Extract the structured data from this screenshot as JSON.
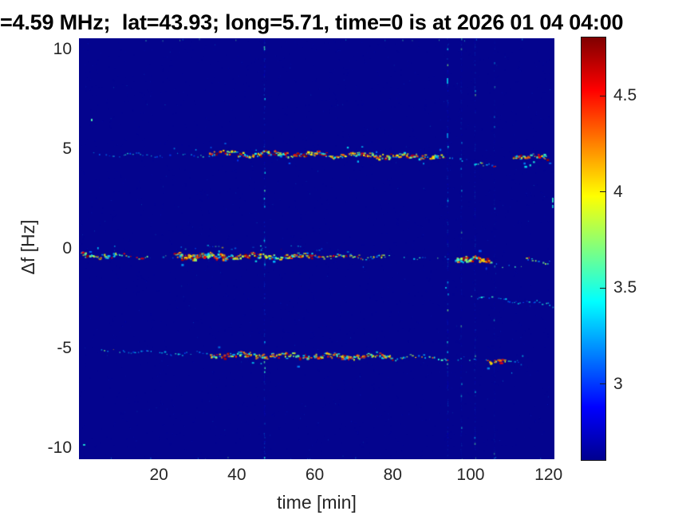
{
  "chart_data": {
    "type": "heatmap",
    "title": "=4.59 MHz;  lat=43.93; long=5.71, time=0 is at 2026 01 04 04:00",
    "xlabel": "time [min]",
    "ylabel": "Δf [Hz]",
    "xlim": [
      -0.5,
      121.5
    ],
    "ylim": [
      -10.56,
      10.56
    ],
    "xticks": [
      20,
      40,
      60,
      80,
      100,
      120
    ],
    "yticks": [
      10,
      5,
      0,
      -5,
      -10
    ],
    "grid": false,
    "colormap": "jet",
    "clim": [
      2.6,
      4.81
    ],
    "colorbar_ticks": [
      4.5,
      4,
      3.5,
      3
    ],
    "colorbar_position": "right",
    "background_value": 2.6,
    "series": [
      {
        "name": "upper doppler trace ~ +4.7 Hz",
        "segments": [
          {
            "t0": 3,
            "t1": 8,
            "df0": 4.75,
            "df1": 4.75,
            "intensity": "sparse"
          },
          {
            "t0": 8,
            "t1": 33,
            "df0": 4.75,
            "df1": 4.7,
            "intensity": "faint"
          },
          {
            "t0": 33,
            "t1": 60,
            "df0": 4.8,
            "df1": 4.75,
            "intensity": "bright"
          },
          {
            "t0": 60,
            "t1": 93,
            "df0": 4.75,
            "df1": 4.65,
            "intensity": "bright"
          },
          {
            "t0": 93,
            "t1": 100,
            "df0": 4.6,
            "df1": 4.5,
            "intensity": "sparse"
          },
          {
            "t0": 101,
            "t1": 107,
            "df0": 4.35,
            "df1": 4.15,
            "intensity": "medium"
          },
          {
            "t0": 111,
            "t1": 120,
            "df0": 4.7,
            "df1": 4.6,
            "intensity": "bright"
          }
        ]
      },
      {
        "name": "carrier trace ~ -0.4 Hz",
        "segments": [
          {
            "t0": 0,
            "t1": 9,
            "df0": -0.3,
            "df1": -0.35,
            "intensity": "bright"
          },
          {
            "t0": 9,
            "t1": 17,
            "df0": -0.35,
            "df1": -0.4,
            "intensity": "medium"
          },
          {
            "t0": 17,
            "t1": 24,
            "df0": -0.4,
            "df1": -0.4,
            "intensity": "sparse"
          },
          {
            "t0": 24,
            "t1": 37,
            "df0": -0.3,
            "df1": -0.4,
            "intensity": "bright2"
          },
          {
            "t0": 37,
            "t1": 60,
            "df0": -0.35,
            "df1": -0.35,
            "intensity": "bright"
          },
          {
            "t0": 60,
            "t1": 78,
            "df0": -0.35,
            "df1": -0.4,
            "intensity": "medium2"
          },
          {
            "t0": 78,
            "t1": 95,
            "df0": -0.4,
            "df1": -0.45,
            "intensity": "sparse"
          },
          {
            "t0": 96,
            "t1": 105,
            "df0": -0.45,
            "df1": -0.65,
            "intensity": "bright2"
          },
          {
            "t0": 105,
            "t1": 113,
            "df0": -0.7,
            "df1": -0.9,
            "intensity": "sparse"
          },
          {
            "t0": 114,
            "t1": 120,
            "df0": -0.5,
            "df1": -0.6,
            "intensity": "medium"
          }
        ]
      },
      {
        "name": "lower doppler trace ~ -5.3 Hz",
        "segments": [
          {
            "t0": 2,
            "t1": 10,
            "df0": -5.1,
            "df1": -5.1,
            "intensity": "sparse"
          },
          {
            "t0": 10,
            "t1": 33,
            "df0": -5.1,
            "df1": -5.3,
            "intensity": "faint"
          },
          {
            "t0": 33,
            "t1": 80,
            "df0": -5.3,
            "df1": -5.4,
            "intensity": "bright"
          },
          {
            "t0": 80,
            "t1": 95,
            "df0": -5.4,
            "df1": -5.5,
            "intensity": "medium"
          },
          {
            "t0": 95,
            "t1": 104,
            "df0": -5.5,
            "df1": -5.55,
            "intensity": "sparse"
          },
          {
            "t0": 104,
            "t1": 109,
            "df0": -5.55,
            "df1": -5.65,
            "intensity": "bright"
          },
          {
            "t0": 109,
            "t1": 114,
            "df0": -5.65,
            "df1": -5.7,
            "intensity": "faint"
          }
        ]
      },
      {
        "name": "faint descending trace ~ -2.5 Hz",
        "segments": [
          {
            "t0": 100,
            "t1": 121,
            "df0": -2.35,
            "df1": -2.8,
            "intensity": "faint"
          }
        ]
      },
      {
        "name": "weak sideband above carrier",
        "segments": [
          {
            "t0": 25,
            "t1": 62,
            "df0": 0.1,
            "df1": 0.05,
            "intensity": "sparse"
          }
        ]
      }
    ],
    "vertical_streaks": [
      {
        "t": 47,
        "strength": 0.5
      },
      {
        "t": 94,
        "strength": 0.42
      },
      {
        "t": 97.5,
        "strength": 0.22
      },
      {
        "t": 101,
        "strength": 0.3
      },
      {
        "t": 106,
        "strength": 0.14
      }
    ],
    "specks": [
      {
        "x": 15,
        "y": 101,
        "w": 2,
        "h": 3,
        "v": 3.6,
        "a": 0.9
      },
      {
        "x": 593,
        "y": 200,
        "w": 2,
        "h": 6,
        "v": 3.55,
        "a": 0.85
      },
      {
        "x": 593,
        "y": 209,
        "w": 2,
        "h": 4,
        "v": 3.5,
        "a": 0.7
      },
      {
        "x": 5,
        "y": 509,
        "w": 3,
        "h": 2,
        "v": 3.5,
        "a": 0.8
      },
      {
        "x": 461,
        "y": 50,
        "w": 2,
        "h": 7,
        "v": 3.4,
        "a": 0.7
      },
      {
        "x": 461,
        "y": 119,
        "w": 2,
        "h": 6,
        "v": 3.3,
        "a": 0.6
      },
      {
        "x": 459,
        "y": 312,
        "w": 2,
        "h": 2,
        "v": 3.4,
        "a": 0.7
      }
    ]
  },
  "colors": {
    "plot_background": "#04048e",
    "tick_label": "#262626",
    "title": "#000000",
    "colorbar_top": "#7f0000",
    "colorbar_bottom": "#00008f"
  }
}
